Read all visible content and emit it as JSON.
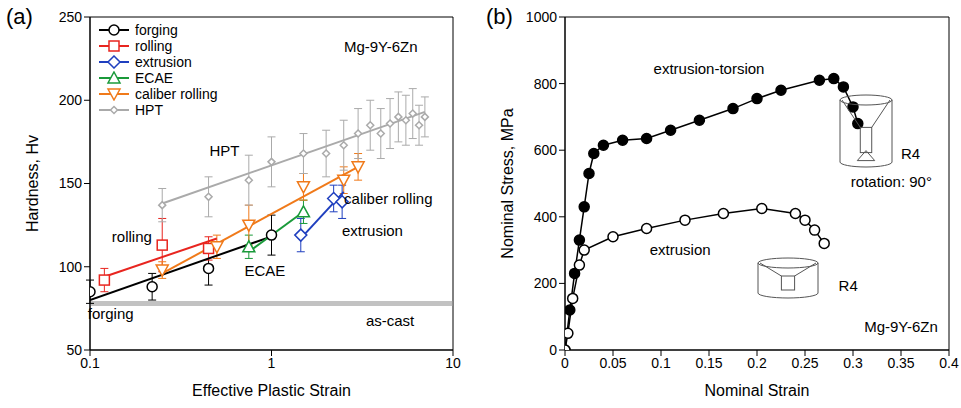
{
  "chart_data": [
    {
      "type": "scatter",
      "panel_label": "(a)",
      "x_label": "Effective Plastic Strain",
      "y_label": "Hardness, Hv",
      "log": "x",
      "grid": false,
      "legend": "upper left",
      "xlim": [
        0.1,
        10
      ],
      "xticks": [
        0.1,
        1,
        10
      ],
      "ylim": [
        50,
        250
      ],
      "yticks": [
        50,
        100,
        150,
        200,
        250
      ],
      "reference_line": {
        "value": 78,
        "color": "#9a9a9a"
      },
      "series": [
        {
          "name": "forging",
          "color": "#000000",
          "marker": "open_circle",
          "x": [
            0.1,
            0.22,
            0.45,
            1.0
          ],
          "values": [
            85,
            88,
            99,
            119
          ],
          "errors": [
            7,
            8,
            10,
            12
          ],
          "fit": {
            "x": [
              0.1,
              1.05
            ],
            "values": [
              80,
              119
            ]
          }
        },
        {
          "name": "rolling",
          "color": "#e8251f",
          "marker": "open_square",
          "x": [
            0.12,
            0.25,
            0.45
          ],
          "values": [
            92,
            113,
            111
          ],
          "errors": [
            7,
            16,
            7
          ],
          "fit": {
            "x": [
              0.12,
              0.5
            ],
            "values": [
              94,
              117
            ]
          }
        },
        {
          "name": "extrusion",
          "color": "#1f3fbf",
          "marker": "open_diamond",
          "x": [
            1.45,
            2.2,
            2.45
          ],
          "values": [
            119,
            141,
            139
          ],
          "errors": [
            10,
            8,
            10
          ],
          "fit": {
            "x": [
              1.45,
              2.5
            ],
            "values": [
              117,
              145
            ]
          }
        },
        {
          "name": "ECAE",
          "color": "#1a9a3a",
          "marker": "open_triangle",
          "x": [
            0.75,
            1.5
          ],
          "values": [
            112,
            133
          ],
          "errors": [
            7,
            7
          ],
          "fit": {
            "x": [
              0.75,
              1.5
            ],
            "values": [
              109,
              133
            ]
          }
        },
        {
          "name": "caliber rolling",
          "color": "#f07a1a",
          "marker": "open_triangle_down",
          "x": [
            0.25,
            0.5,
            0.75,
            1.5,
            2.5,
            3.0
          ],
          "values": [
            98,
            112,
            125,
            148,
            152,
            160
          ],
          "errors": [
            5,
            7,
            12,
            8,
            8,
            8
          ],
          "fit": {
            "x": [
              0.25,
              3.0
            ],
            "values": [
              96,
              160
            ]
          }
        },
        {
          "name": "HPT",
          "color": "#aaaaaa",
          "marker": "small_diamond",
          "x": [
            0.25,
            0.45,
            0.75,
            1.0,
            1.5,
            2.0,
            2.5,
            3.0,
            3.5,
            4.0,
            4.5,
            5.0,
            5.5,
            6.0,
            6.5,
            7.0
          ],
          "values": [
            137,
            142,
            152,
            163,
            168,
            168,
            173,
            180,
            185,
            180,
            186,
            190,
            188,
            192,
            185,
            190
          ],
          "errors": [
            10,
            12,
            15,
            15,
            12,
            14,
            15,
            15,
            15,
            15,
            15,
            15,
            15,
            15,
            12,
            12
          ],
          "fit": {
            "x": [
              0.25,
              7.0
            ],
            "values": [
              138,
              193
            ]
          }
        }
      ],
      "annotations": [
        {
          "text": "Mg-9Y-6Zn",
          "x": 4.0,
          "y": 232,
          "color": "#000000"
        },
        {
          "text": "HPT",
          "x": 0.55,
          "y": 170,
          "color": "#000000"
        },
        {
          "text": "caliber rolling",
          "x": 4.4,
          "y": 141,
          "color": "#000000"
        },
        {
          "text": "extrusion",
          "x": 3.6,
          "y": 122,
          "color": "#000000"
        },
        {
          "text": "ECAE",
          "x": 0.92,
          "y": 98,
          "color": "#000000"
        },
        {
          "text": "rolling",
          "x": 0.17,
          "y": 118,
          "color": "#000000"
        },
        {
          "text": "forging",
          "x": 0.13,
          "y": 72,
          "color": "#000000"
        },
        {
          "text": "as-cast",
          "x": 4.5,
          "y": 68,
          "color": "#000000"
        }
      ]
    },
    {
      "type": "line",
      "panel_label": "(b)",
      "x_label": "Nominal Strain",
      "y_label": "Nominal Stress, MPa",
      "grid": false,
      "xlim": [
        0,
        0.4
      ],
      "xticks": [
        0,
        0.05,
        0.1,
        0.15,
        0.2,
        0.25,
        0.3,
        0.35,
        0.4
      ],
      "ylim": [
        0,
        1000
      ],
      "yticks": [
        0,
        200,
        400,
        600,
        800,
        1000
      ],
      "series": [
        {
          "name": "extrusion-torsion",
          "color": "#000000",
          "marker": "filled_circle",
          "x": [
            0,
            0.005,
            0.01,
            0.015,
            0.02,
            0.025,
            0.03,
            0.04,
            0.06,
            0.085,
            0.11,
            0.14,
            0.175,
            0.2,
            0.225,
            0.265,
            0.28,
            0.29,
            0.3,
            0.305
          ],
          "values": [
            0,
            120,
            230,
            330,
            430,
            530,
            590,
            615,
            630,
            635,
            660,
            690,
            725,
            755,
            780,
            810,
            815,
            790,
            730,
            680
          ]
        },
        {
          "name": "extrusion",
          "color": "#000000",
          "marker": "open_circle",
          "x": [
            0,
            0.003,
            0.008,
            0.015,
            0.02,
            0.05,
            0.085,
            0.125,
            0.165,
            0.205,
            0.24,
            0.25,
            0.26,
            0.27
          ],
          "values": [
            0,
            50,
            155,
            255,
            300,
            340,
            365,
            390,
            410,
            425,
            410,
            390,
            360,
            320
          ]
        }
      ],
      "annotations": [
        {
          "text": "extrusion-torsion",
          "x": 0.15,
          "y": 845,
          "color": "#000000"
        },
        {
          "text": "extrusion",
          "x": 0.12,
          "y": 302,
          "color": "#000000"
        },
        {
          "text": "R4",
          "x": 0.36,
          "y": 590,
          "color": "#000000"
        },
        {
          "text": "rotation: 90°",
          "x": 0.34,
          "y": 505,
          "color": "#000000"
        },
        {
          "text": "R4",
          "x": 0.295,
          "y": 195,
          "color": "#000000"
        },
        {
          "text": "Mg-9Y-6Zn",
          "x": 0.35,
          "y": 70,
          "color": "#000000"
        }
      ]
    }
  ]
}
